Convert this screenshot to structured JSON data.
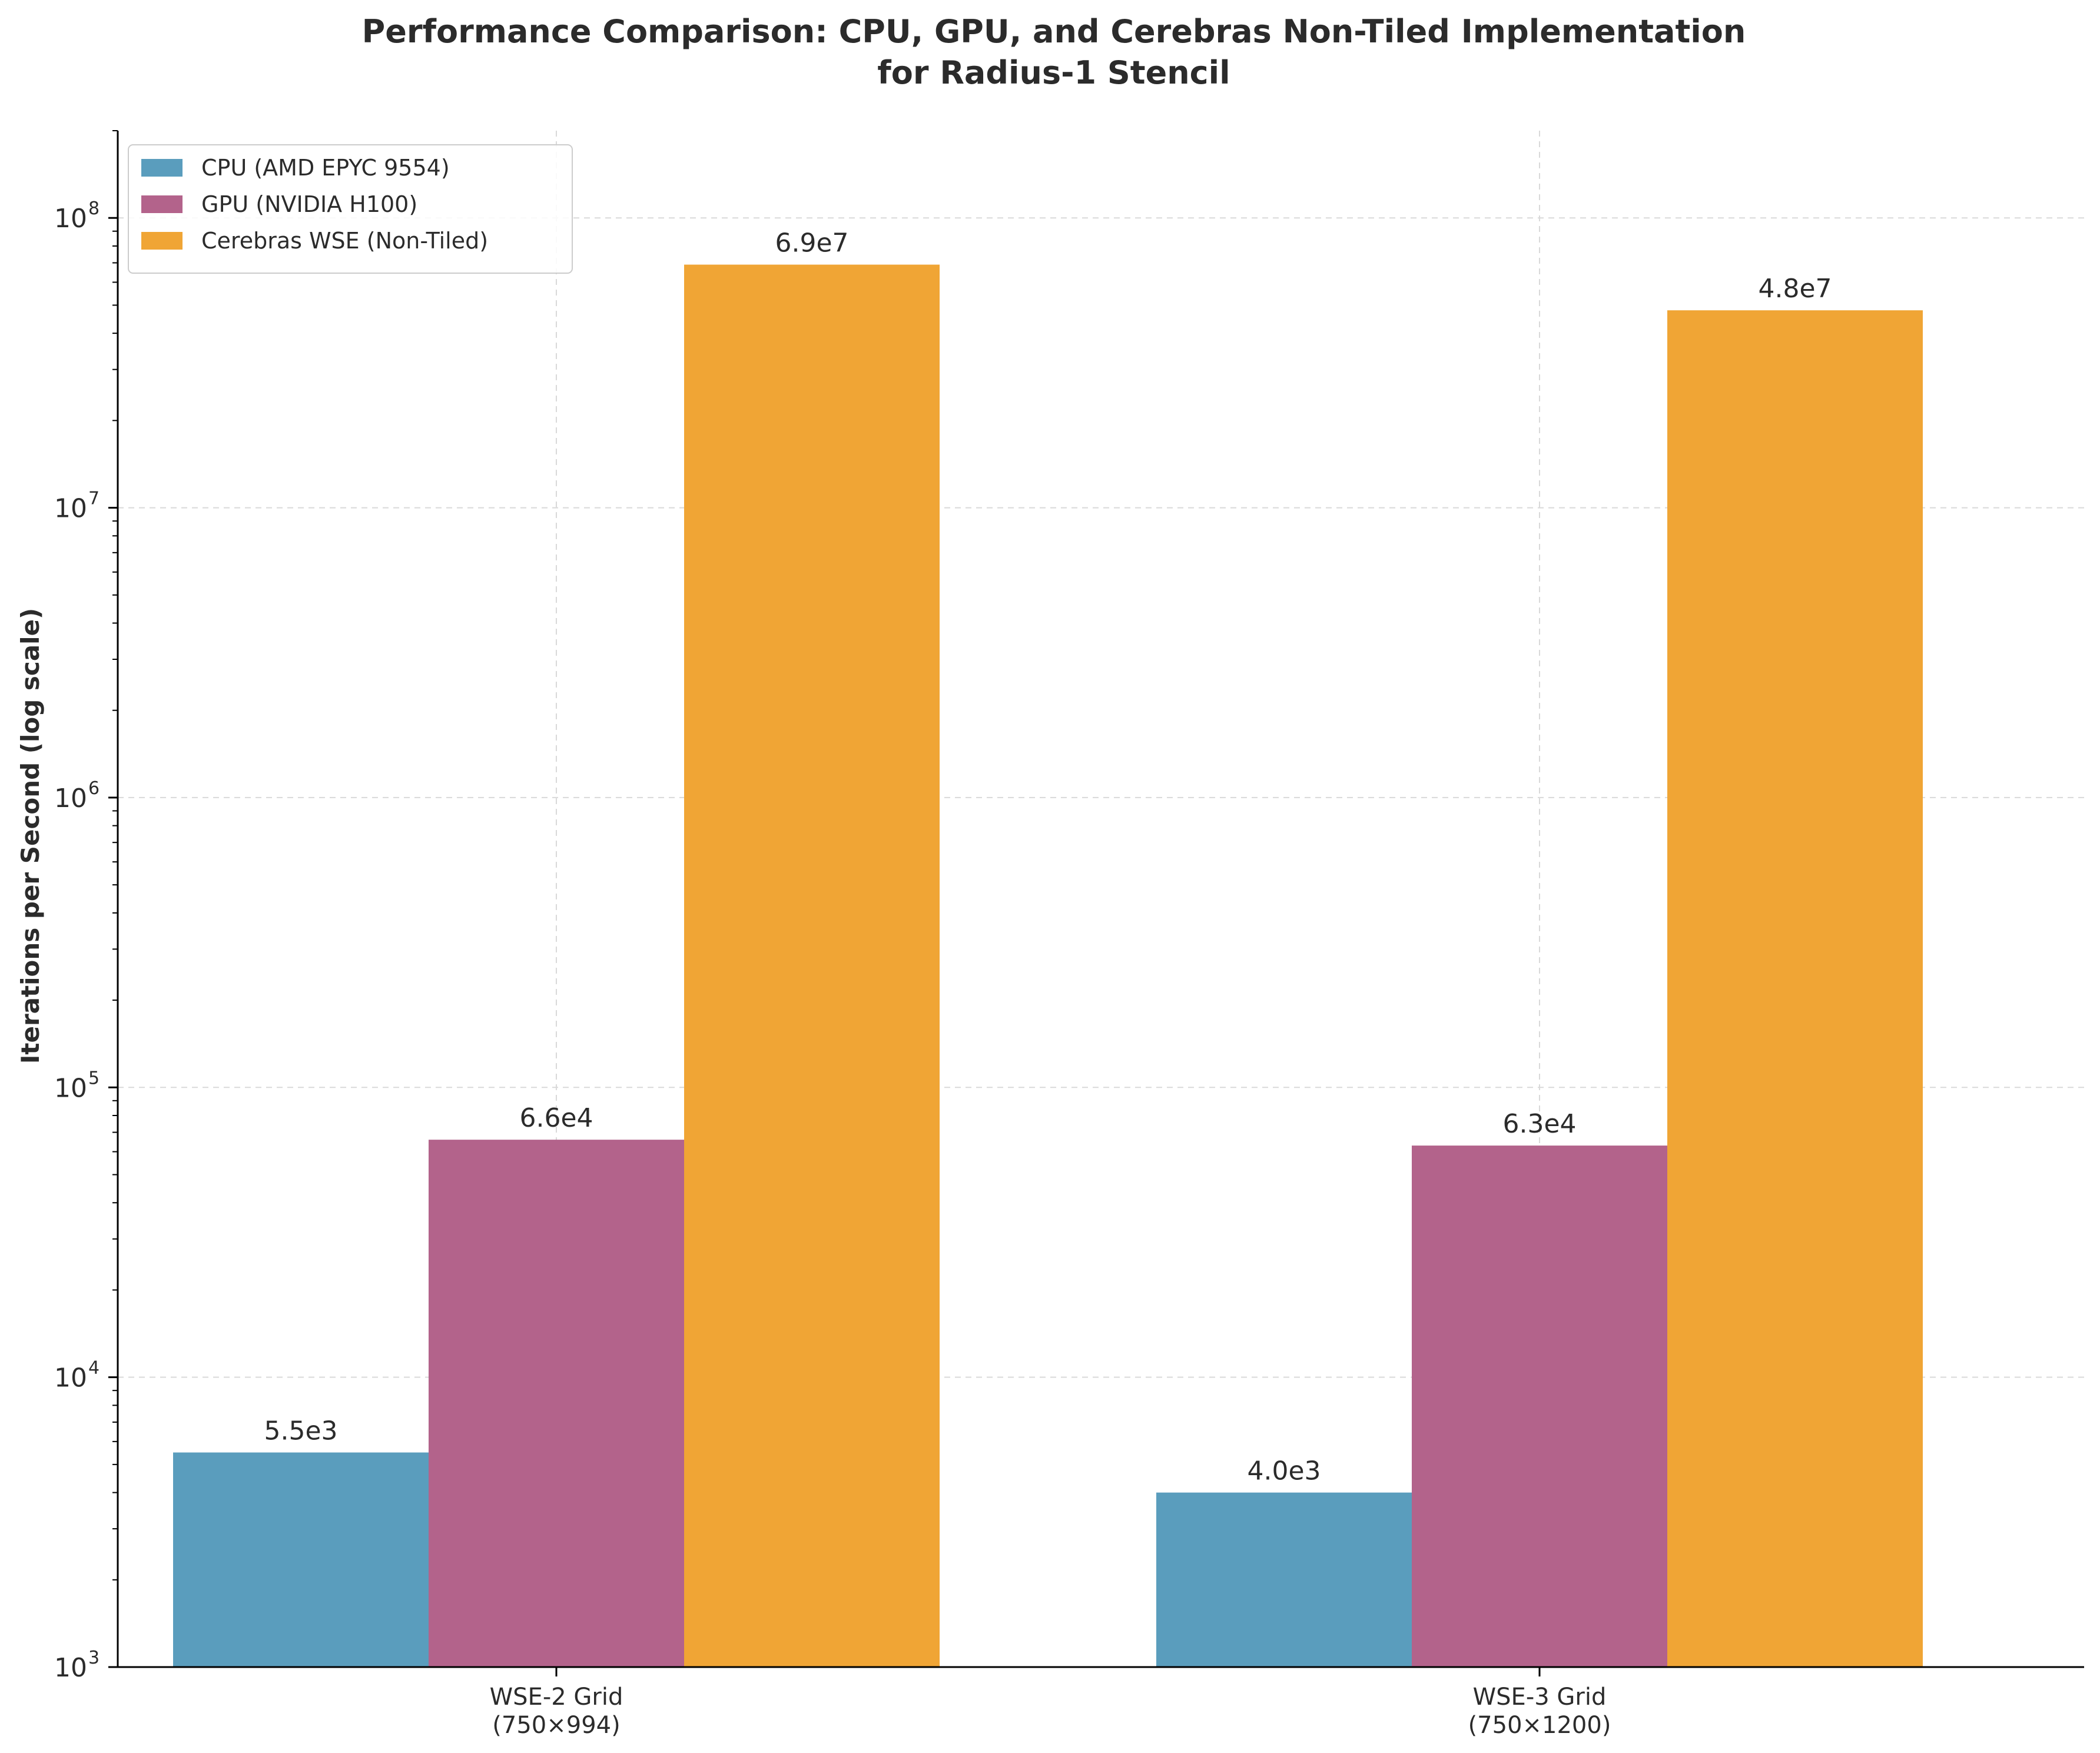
{
  "chart_data": {
    "type": "bar",
    "title": [
      "Performance Comparison: CPU, GPU, and Cerebras Non-Tiled Implementation",
      "for Radius-1 Stencil"
    ],
    "xlabel": "",
    "ylabel": "Iterations per Second (log scale)",
    "yscale": "log",
    "ylim": [
      1000,
      200000000
    ],
    "yticks": [
      {
        "base": "10",
        "exp": "3",
        "value": 1000
      },
      {
        "base": "10",
        "exp": "4",
        "value": 10000
      },
      {
        "base": "10",
        "exp": "5",
        "value": 100000
      },
      {
        "base": "10",
        "exp": "6",
        "value": 1000000
      },
      {
        "base": "10",
        "exp": "7",
        "value": 10000000
      },
      {
        "base": "10",
        "exp": "8",
        "value": 100000000
      }
    ],
    "categories": [
      {
        "line1": "WSE-2 Grid",
        "line2": "(750×994)"
      },
      {
        "line1": "WSE-3 Grid",
        "line2": "(750×1200)"
      }
    ],
    "series": [
      {
        "name": "CPU (AMD EPYC 9554)",
        "color": "#5a9dbd",
        "values": [
          5500,
          4000
        ],
        "labels": [
          "5.5e3",
          "4.0e3"
        ]
      },
      {
        "name": "GPU (NVIDIA H100)",
        "color": "#b3638b",
        "values": [
          66000,
          63000
        ],
        "labels": [
          "6.6e4",
          "6.3e4"
        ]
      },
      {
        "name": "Cerebras WSE (Non-Tiled)",
        "color": "#f0a535",
        "values": [
          69000000,
          48000000
        ],
        "labels": [
          "6.9e7",
          "4.8e7"
        ]
      }
    ],
    "grid": true,
    "legend_position": "top-left"
  }
}
